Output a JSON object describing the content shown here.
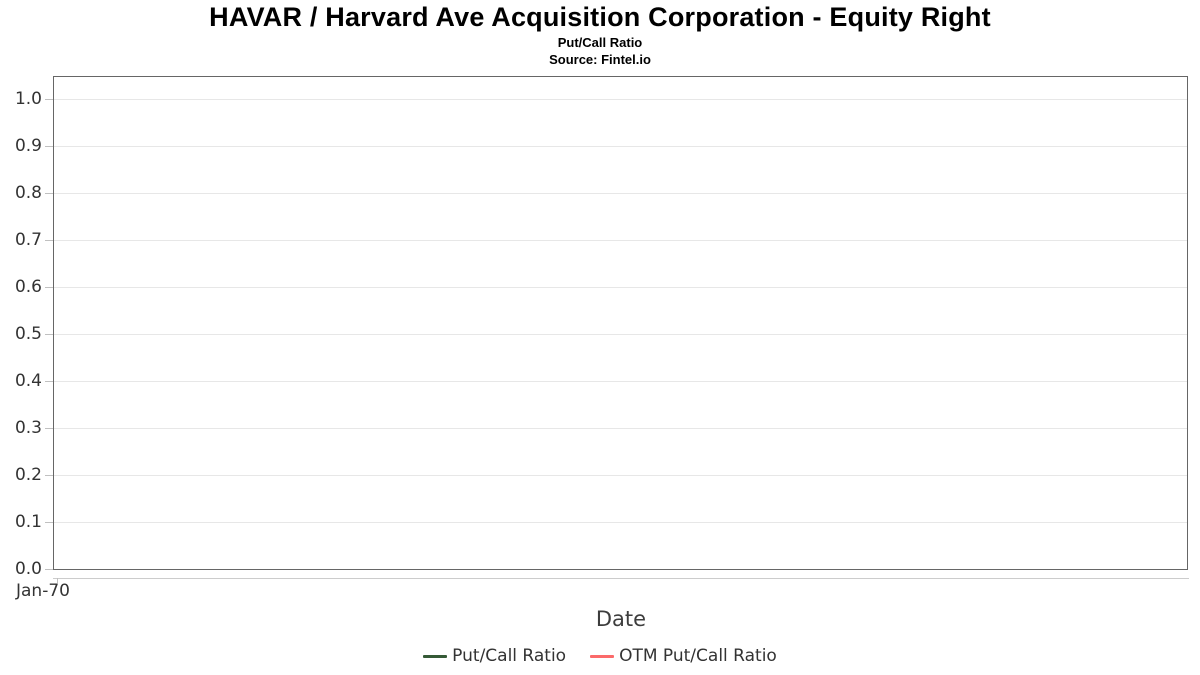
{
  "header": {
    "title": "HAVAR / Harvard Ave Acquisition Corporation - Equity Right",
    "subtitle": "Put/Call Ratio",
    "source": "Source: Fintel.io"
  },
  "chart_data": {
    "type": "line",
    "title": "HAVAR / Harvard Ave Acquisition Corporation - Equity Right",
    "subtitle": "Put/Call Ratio",
    "source": "Source: Fintel.io",
    "xlabel": "Date",
    "ylabel": "",
    "ylim": [
      0,
      1.05
    ],
    "yticks": [
      0.0,
      0.1,
      0.2,
      0.3,
      0.4,
      0.5,
      0.6,
      0.7,
      0.8,
      0.9,
      1.0
    ],
    "ytick_labels": [
      "0.0",
      "0.1",
      "0.2",
      "0.3",
      "0.4",
      "0.5",
      "0.6",
      "0.7",
      "0.8",
      "0.9",
      "1.0"
    ],
    "xtick_labels": [
      "Jan-70"
    ],
    "grid": true,
    "legend_position": "bottom",
    "series": [
      {
        "name": "Put/Call Ratio",
        "color": "#355a36",
        "x": [],
        "values": []
      },
      {
        "name": "OTM Put/Call Ratio",
        "color": "#fb6a6a",
        "x": [],
        "values": []
      }
    ],
    "colors": {
      "plot_border": "#666666",
      "gridline": "#e7e7e7",
      "axis_line": "#cccccc",
      "tick": "#c0c0c0",
      "label_text": "#333333"
    }
  }
}
